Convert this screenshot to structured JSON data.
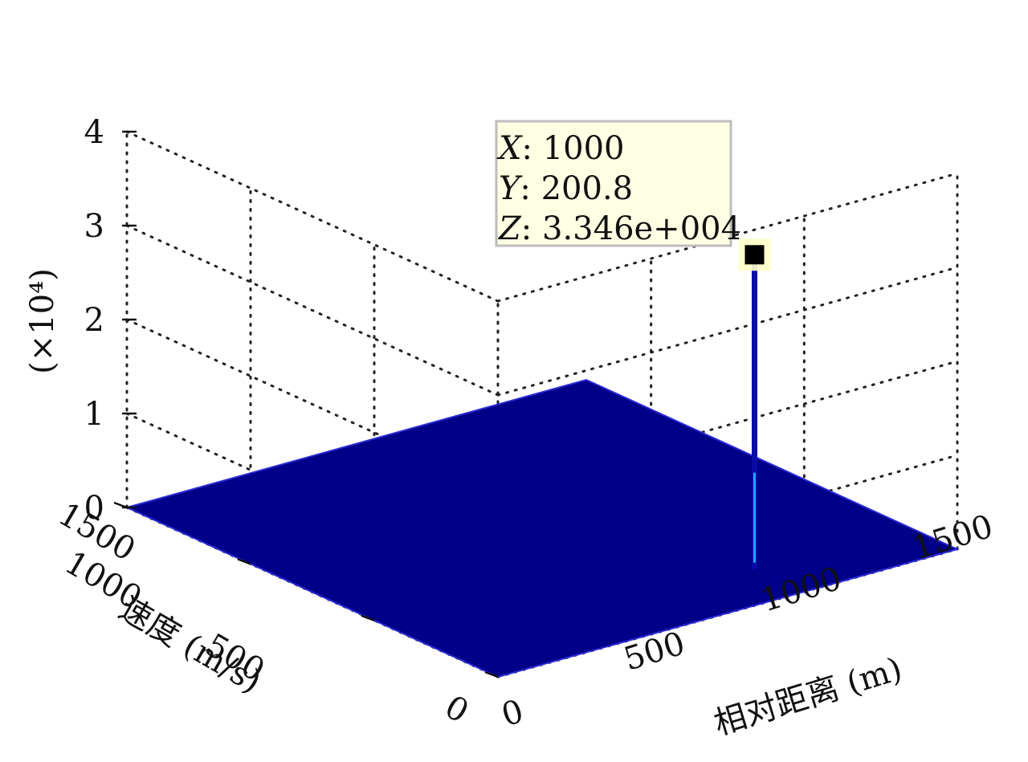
{
  "chart_data": {
    "type": "surface3d",
    "x_axis": {
      "label": "相对距离 (m)",
      "range": [
        0,
        1500
      ],
      "ticks": [
        0,
        500,
        1000,
        1500
      ]
    },
    "y_axis": {
      "label": "速度 (m/s)",
      "range": [
        0,
        1500
      ],
      "ticks": [
        0,
        500,
        1000,
        1500
      ]
    },
    "z_axis": {
      "label": "(×10⁴)",
      "multiplier": 10000,
      "range": [
        0,
        4
      ],
      "ticks": [
        0,
        1,
        2,
        3,
        4
      ]
    },
    "grid": true,
    "surface": {
      "base_value": 0,
      "colormap": "jet",
      "base_color": "#000088"
    },
    "peak": {
      "x": 1000,
      "y": 200.8,
      "z": 33460
    },
    "datatip": {
      "x_label": "X",
      "x_value": "1000",
      "y_label": "Y",
      "y_value": "200.8",
      "z_label": "Z",
      "z_value": "3.346e+004"
    }
  }
}
